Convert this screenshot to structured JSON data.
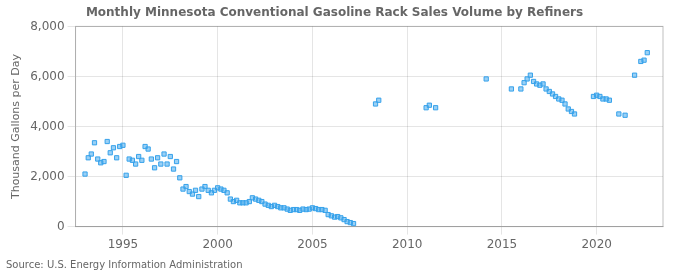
{
  "chart_data": {
    "type": "scatter",
    "title": "Monthly Minnesota Conventional Gasoline Rack Sales Volume by Refiners",
    "ylabel": "Thousand Gallons per Day",
    "annotations": [
      "Source: U.S. Energy Information Administration"
    ],
    "marker": "square",
    "grid": true,
    "xlim": [
      1992.5,
      2023.5
    ],
    "xticks": [
      1995,
      2000,
      2005,
      2010,
      2015,
      2020
    ],
    "ylim": [
      0,
      8000
    ],
    "yticks": [
      0,
      {
        "value": 2000,
        "label": "2,000"
      },
      {
        "value": 4000,
        "label": "4,000"
      },
      {
        "value": 6000,
        "label": "6,000"
      },
      {
        "value": 8000,
        "label": "8,000"
      }
    ],
    "x": [
      1993.0,
      1993.17,
      1993.33,
      1993.5,
      1993.67,
      1993.83,
      1994.0,
      1994.17,
      1994.33,
      1994.5,
      1994.67,
      1994.83,
      1995.0,
      1995.17,
      1995.33,
      1995.5,
      1995.67,
      1995.83,
      1996.0,
      1996.17,
      1996.33,
      1996.5,
      1996.67,
      1996.83,
      1997.0,
      1997.17,
      1997.33,
      1997.5,
      1997.67,
      1997.83,
      1998.0,
      1998.17,
      1998.33,
      1998.5,
      1998.67,
      1998.83,
      1999.0,
      1999.17,
      1999.33,
      1999.5,
      1999.67,
      1999.83,
      2000.0,
      2000.17,
      2000.33,
      2000.5,
      2000.67,
      2000.83,
      2001.0,
      2001.17,
      2001.33,
      2001.5,
      2001.67,
      2001.83,
      2002.0,
      2002.17,
      2002.33,
      2002.5,
      2002.67,
      2002.83,
      2003.0,
      2003.17,
      2003.33,
      2003.5,
      2003.67,
      2003.83,
      2004.0,
      2004.17,
      2004.33,
      2004.5,
      2004.67,
      2004.83,
      2005.0,
      2005.17,
      2005.33,
      2005.5,
      2005.67,
      2005.83,
      2006.0,
      2006.17,
      2006.33,
      2006.5,
      2006.67,
      2006.83,
      2007.0,
      2007.17,
      2008.33,
      2008.5,
      2011.0,
      2011.17,
      2011.5,
      2014.17,
      2015.5,
      2016.0,
      2016.17,
      2016.33,
      2016.5,
      2016.67,
      2016.83,
      2017.0,
      2017.17,
      2017.33,
      2017.5,
      2017.67,
      2017.83,
      2018.0,
      2018.17,
      2018.33,
      2018.5,
      2018.67,
      2018.83,
      2019.83,
      2020.0,
      2020.17,
      2020.33,
      2020.5,
      2020.67,
      2021.17,
      2021.5,
      2022.0,
      2022.33,
      2022.5,
      2022.67
    ],
    "values": [
      2100,
      2750,
      2900,
      3350,
      2700,
      2550,
      2600,
      3400,
      2950,
      3150,
      2750,
      3200,
      3250,
      2050,
      2700,
      2650,
      2500,
      2800,
      2650,
      3200,
      3100,
      2700,
      2350,
      2750,
      2500,
      2900,
      2500,
      2800,
      2300,
      2600,
      1950,
      1500,
      1600,
      1400,
      1300,
      1450,
      1200,
      1500,
      1600,
      1450,
      1350,
      1450,
      1550,
      1500,
      1450,
      1350,
      1100,
      1000,
      1050,
      950,
      950,
      950,
      1000,
      1150,
      1100,
      1050,
      1000,
      900,
      850,
      800,
      850,
      800,
      750,
      750,
      700,
      650,
      680,
      680,
      650,
      700,
      680,
      700,
      750,
      720,
      680,
      680,
      650,
      480,
      430,
      380,
      400,
      350,
      280,
      200,
      160,
      120,
      4900,
      5050,
      4750,
      4850,
      4750,
      5900,
      5500,
      5500,
      5750,
      5900,
      6050,
      5800,
      5700,
      5650,
      5700,
      5500,
      5400,
      5300,
      5200,
      5100,
      5050,
      4900,
      4700,
      4600,
      4500,
      5200,
      5250,
      5200,
      5100,
      5100,
      5050,
      4500,
      4450,
      6050,
      6600,
      6650,
      6950
    ]
  }
}
